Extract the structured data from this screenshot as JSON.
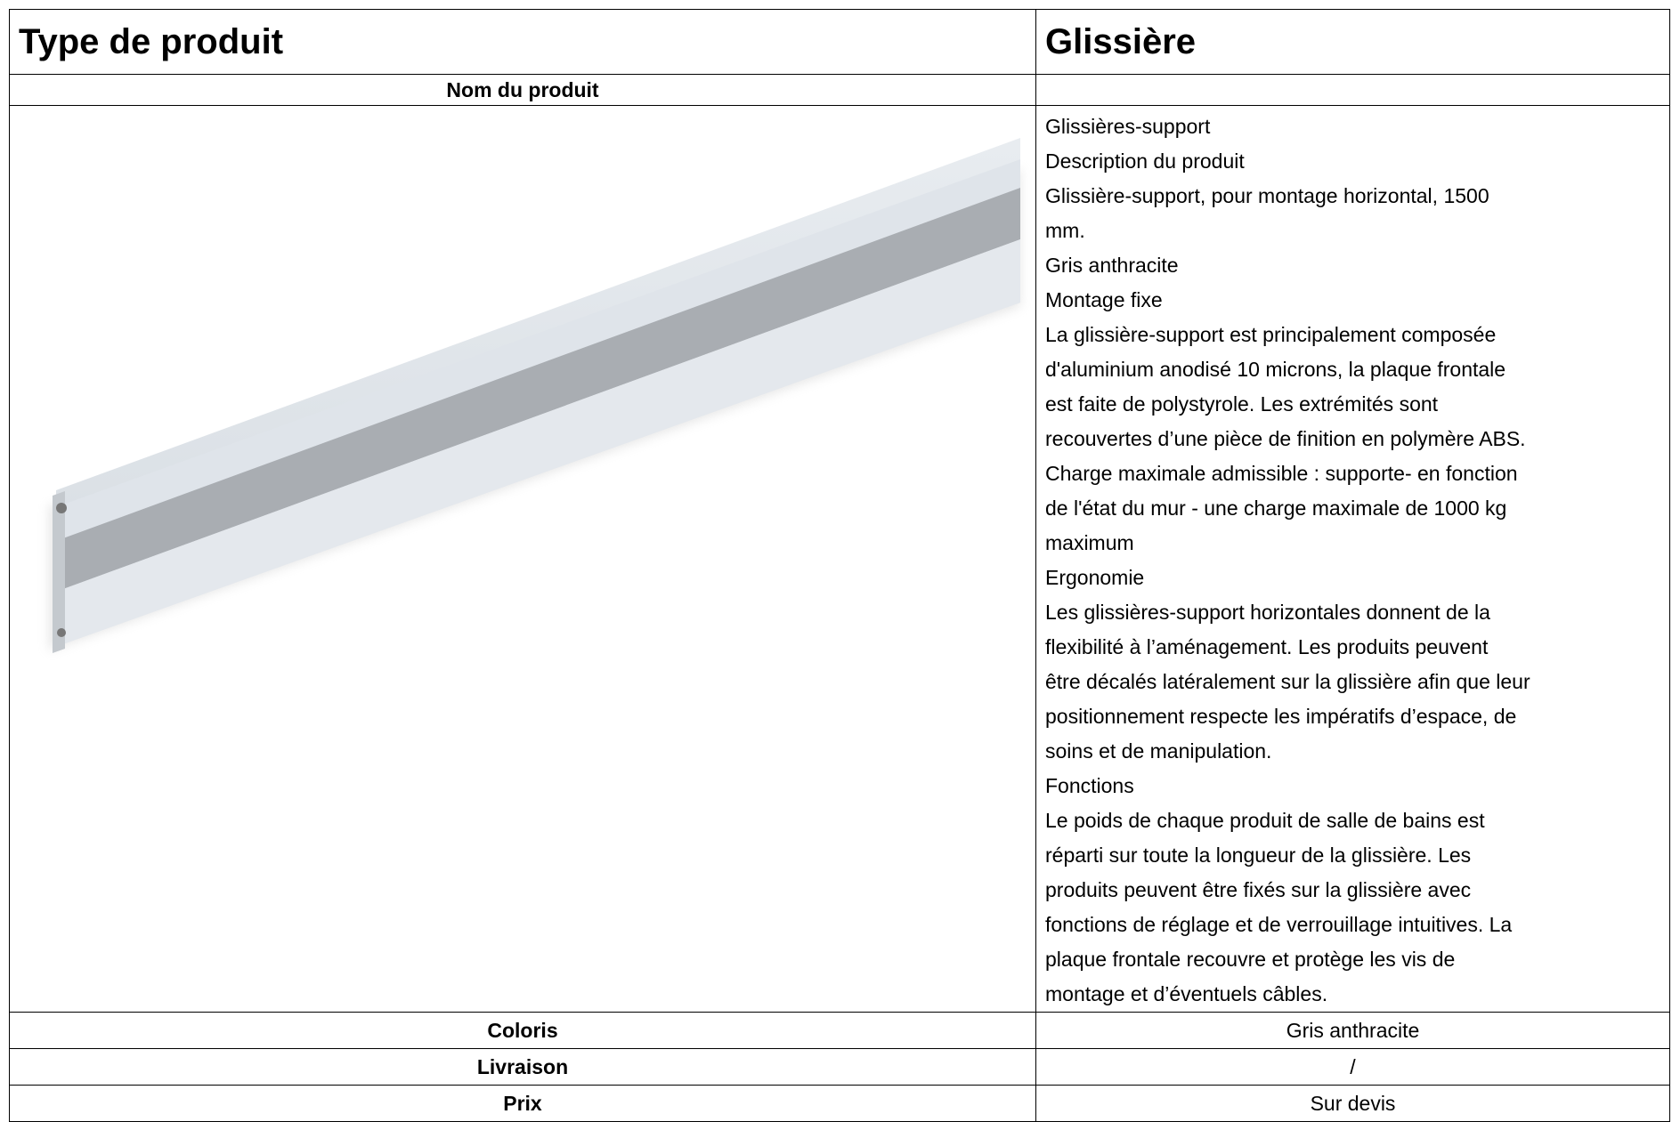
{
  "header": {
    "label": "Type de produit",
    "value": "Glissière"
  },
  "name_row": {
    "label": "Nom du produit"
  },
  "description": {
    "lines": [
      "Glissières-support",
      "Description du produit",
      "Glissière-support, pour montage horizontal, 1500",
      "mm.",
      "Gris anthracite",
      "Montage fixe",
      "La glissière-support est principalement composée",
      "d'aluminium anodisé 10 microns, la plaque frontale",
      "est faite de polystyrole. Les extrémités sont",
      "recouvertes d’une pièce de finition en polymère ABS.",
      "Charge maximale admissible : supporte- en fonction",
      "de l'état du mur - une charge maximale de 1000 kg",
      "maximum",
      "Ergonomie",
      "Les glissières-support horizontales donnent de la",
      "flexibilité à l’aménagement. Les produits peuvent",
      "être décalés latéralement sur la glissière afin que leur",
      "positionnement respecte les impératifs d’espace, de",
      "soins et de manipulation.",
      "Fonctions",
      "Le poids de chaque produit de salle de bains est",
      "réparti sur toute la longueur de la glissière. Les",
      "produits peuvent être fixés sur la glissière avec",
      "fonctions de réglage et de verrouillage intuitives. La",
      "plaque frontale recouvre et protège les vis de",
      "montage et d’éventuels câbles."
    ]
  },
  "rows": [
    [
      "Coloris",
      "Gris anthracite"
    ],
    [
      "Livraison",
      "/"
    ],
    [
      "Prix",
      "Sur devis"
    ]
  ]
}
